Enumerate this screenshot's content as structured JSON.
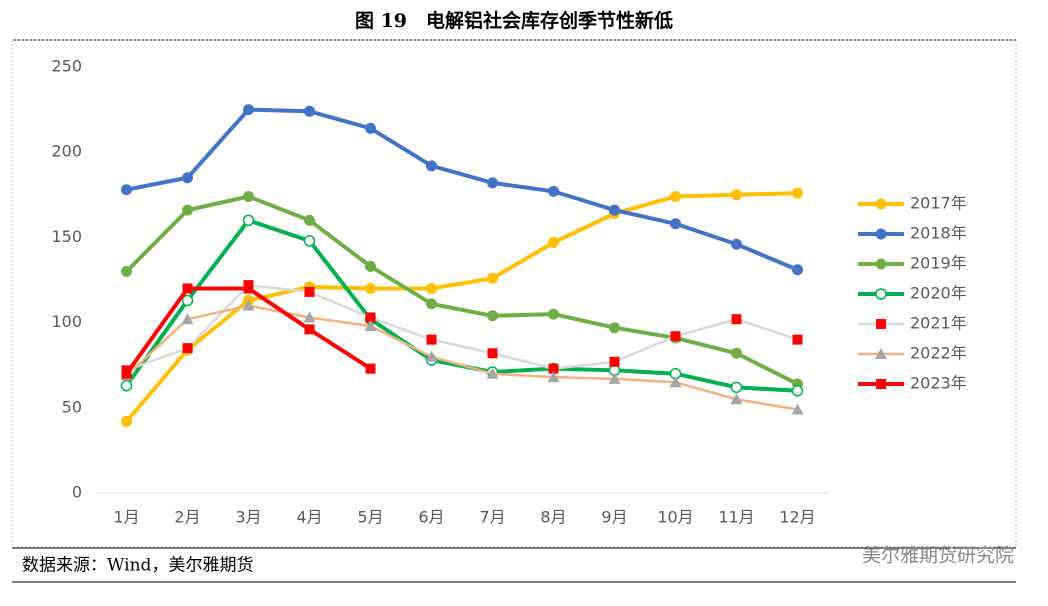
{
  "chart_data": {
    "type": "line",
    "title": "图 19　电解铝社会库存创季节性新低",
    "source": "数据来源：Wind，美尔雅期货",
    "watermark": "美尔雅期货研究院",
    "categories": [
      "1月",
      "2月",
      "3月",
      "4月",
      "5月",
      "6月",
      "7月",
      "8月",
      "9月",
      "10月",
      "11月",
      "12月"
    ],
    "ylim": [
      0,
      250
    ],
    "yticks": [
      0,
      50,
      100,
      150,
      200,
      250
    ],
    "grid": false,
    "legend": "right",
    "series": [
      {
        "name": "2017年",
        "color": "#FFC000",
        "marker": "circle",
        "values": [
          42,
          84,
          113,
          121,
          120,
          120,
          126,
          147,
          164,
          174,
          175,
          176
        ]
      },
      {
        "name": "2018年",
        "color": "#4472C4",
        "marker": "circle",
        "values": [
          178,
          185,
          225,
          224,
          214,
          192,
          182,
          177,
          166,
          158,
          146,
          131
        ]
      },
      {
        "name": "2019年",
        "color": "#70AD47",
        "marker": "circle",
        "values": [
          130,
          166,
          174,
          160,
          133,
          111,
          104,
          105,
          97,
          91,
          82,
          64
        ]
      },
      {
        "name": "2020年",
        "color": "#00B050",
        "marker": "open-circle",
        "values": [
          63,
          113,
          160,
          148,
          102,
          78,
          71,
          73,
          72,
          70,
          62,
          60
        ]
      },
      {
        "name": "2021年",
        "color": "#D9D9D9",
        "marker": "square",
        "marker_color": "#FF0000",
        "values": [
          72,
          85,
          122,
          118,
          103,
          90,
          82,
          73,
          77,
          92,
          102,
          90
        ]
      },
      {
        "name": "2022年",
        "color": "#F4B183",
        "marker": "triangle",
        "marker_color": "#A5A5A5",
        "values": [
          69,
          102,
          110,
          103,
          98,
          80,
          70,
          68,
          67,
          65,
          55,
          49
        ]
      },
      {
        "name": "2023年",
        "color": "#FF0000",
        "marker": "square",
        "values": [
          70,
          120,
          120,
          96,
          73,
          null,
          null,
          null,
          null,
          null,
          null,
          null
        ]
      }
    ]
  }
}
